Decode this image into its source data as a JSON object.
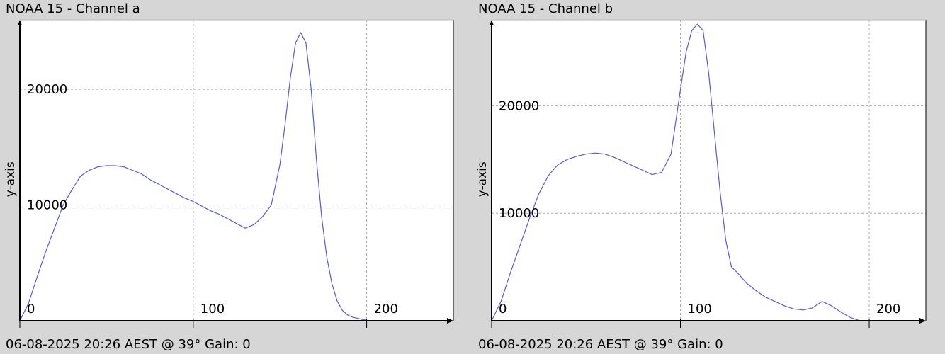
{
  "charts": [
    {
      "title": "NOAA 15 - Channel a",
      "footer": "06-08-2025 20:26 AEST @ 39° Gain: 0",
      "ylabel": "y-axis"
    },
    {
      "title": "NOAA 15 - Channel b",
      "footer": "06-08-2025 20:26 AEST @ 39° Gain: 0",
      "ylabel": "y-axis"
    }
  ],
  "colors": {
    "background": "#d6d6d6",
    "plot_bg": "#ffffff",
    "line": "#5b5bd6",
    "grid": "#a9a9a9"
  },
  "chart_data": [
    {
      "type": "line",
      "title": "NOAA 15 - Channel a",
      "xlabel": "",
      "ylabel": "y-axis",
      "xlim": [
        0,
        250
      ],
      "ylim": [
        0,
        26000
      ],
      "xticks": [
        0,
        100,
        200
      ],
      "yticks": [
        0,
        10000,
        20000
      ],
      "grid": true,
      "x": [
        0,
        5,
        10,
        15,
        20,
        25,
        30,
        35,
        40,
        45,
        50,
        55,
        60,
        65,
        70,
        75,
        80,
        85,
        90,
        95,
        100,
        105,
        110,
        115,
        120,
        125,
        130,
        135,
        140,
        145,
        150,
        153,
        156,
        159,
        162,
        165,
        168,
        171,
        174,
        177,
        180,
        183,
        186,
        189,
        192,
        195,
        198,
        201,
        205
      ],
      "y": [
        0,
        1500,
        3800,
        6000,
        8000,
        10000,
        11300,
        12500,
        13000,
        13300,
        13400,
        13400,
        13300,
        13000,
        12700,
        12200,
        11800,
        11400,
        11000,
        10600,
        10300,
        9900,
        9500,
        9200,
        8800,
        8400,
        8000,
        8300,
        9000,
        10000,
        13500,
        17000,
        21000,
        24000,
        24900,
        24000,
        20000,
        14000,
        9000,
        5500,
        3200,
        1700,
        900,
        500,
        300,
        200,
        100,
        0,
        0
      ]
    },
    {
      "type": "line",
      "title": "NOAA 15 - Channel b",
      "xlabel": "",
      "ylabel": "y-axis",
      "xlim": [
        0,
        230
      ],
      "ylim": [
        0,
        28000
      ],
      "xticks": [
        0,
        100,
        200
      ],
      "yticks": [
        0,
        10000,
        20000
      ],
      "grid": true,
      "x": [
        0,
        5,
        10,
        15,
        20,
        25,
        30,
        35,
        40,
        45,
        50,
        55,
        60,
        65,
        70,
        75,
        80,
        85,
        90,
        95,
        100,
        103,
        106,
        109,
        112,
        115,
        118,
        121,
        124,
        127,
        130,
        135,
        140,
        145,
        150,
        155,
        160,
        165,
        170,
        175,
        180,
        185,
        190,
        195,
        200,
        205
      ],
      "y": [
        0,
        1800,
        4500,
        7000,
        9500,
        11800,
        13500,
        14500,
        15000,
        15300,
        15500,
        15600,
        15500,
        15200,
        14800,
        14400,
        14000,
        13600,
        13800,
        15500,
        21500,
        25000,
        27000,
        27600,
        27000,
        23000,
        17500,
        12000,
        7500,
        5000,
        4500,
        3500,
        2800,
        2200,
        1800,
        1400,
        1100,
        1000,
        1200,
        1800,
        1400,
        800,
        300,
        0,
        0,
        0
      ]
    }
  ]
}
